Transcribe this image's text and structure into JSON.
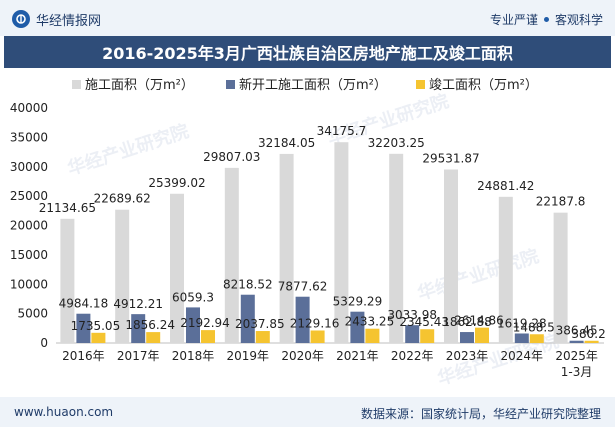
{
  "header": {
    "brand": "华经情报网",
    "tagline": [
      "专业严谨",
      "客观科学"
    ]
  },
  "title": "2016-2025年3月广西壮族自治区房地产施工及竣工面积",
  "footer": {
    "site": "www.huaon.com",
    "source": "数据来源：国家统计局，华经产业研究院整理"
  },
  "watermark": "华经产业研究院",
  "chart_data": {
    "type": "bar",
    "categories": [
      "2016年",
      "2017年",
      "2018年",
      "2019年",
      "2020年",
      "2021年",
      "2022年",
      "2023年",
      "2024年",
      "2025年\n1-3月"
    ],
    "series": [
      {
        "name": "施工面积（万m²）",
        "color": "#d9d9d9",
        "values": [
          21134.65,
          22689.62,
          25399.02,
          29807.03,
          32184.05,
          34175.7,
          32203.25,
          29531.87,
          24881.42,
          22187.8
        ],
        "labels": [
          "21134.65",
          "22689.62",
          "25399.02",
          "29807.03",
          "32184.05",
          "34175.7",
          "32203.25",
          "29531.87",
          "24881.42",
          "22187.8"
        ]
      },
      {
        "name": "新开工施工面积（万m²）",
        "color": "#5b6f99",
        "values": [
          4984.18,
          4912.21,
          6059.3,
          8218.52,
          7877.62,
          5329.29,
          3033.98,
          1862.88,
          1619.28,
          386.45
        ],
        "labels": [
          "4984.18",
          "4912.21",
          "6059.3",
          "8218.52",
          "7877.62",
          "5329.29",
          "3033.98",
          "1862.88",
          "1619.28",
          "386.45"
        ]
      },
      {
        "name": "竣工面积（万m²）",
        "color": "#f5c430",
        "values": [
          1735.05,
          1856.24,
          2192.94,
          2037.85,
          2129.16,
          2433.25,
          2345.43,
          2614.86,
          1488.5,
          380.2
        ],
        "labels": [
          "1735.05",
          "1856.24",
          "2192.94",
          "2037.85",
          "2129.16",
          "2433.25",
          "2345.43",
          "2614.86",
          "1488.5",
          "380.2"
        ]
      }
    ],
    "ylim": [
      0,
      40000
    ],
    "yticks": [
      0,
      5000,
      10000,
      15000,
      20000,
      25000,
      30000,
      35000,
      40000
    ],
    "grid": false,
    "legend_position": "top"
  }
}
